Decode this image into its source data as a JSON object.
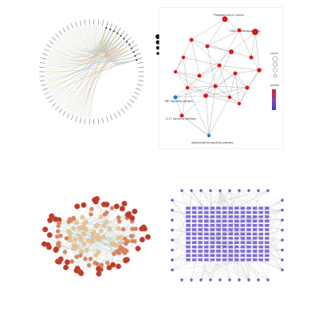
{
  "figure": {
    "panel_a": {
      "legend_sizes": [
        "",
        "",
        "",
        ""
      ],
      "node_labels": [
        "",
        "",
        "",
        "",
        "",
        "",
        "",
        "",
        "",
        "",
        "",
        "",
        "",
        "",
        "",
        ""
      ],
      "colors": {
        "edges": [
          "#f4a582",
          "#92c5de",
          "#b8e186",
          "#fdb863",
          "#c2a5cf",
          "#80cdc1",
          "#f1b6da",
          "#a6dba0"
        ]
      }
    },
    "panel_b": {
      "pathway_labels": {
        "top": "Proteoglycans in cancer",
        "right_top": "FOXO signaling pathway",
        "tnf": "TNF signaling pathway",
        "il17": "IL-17 signaling pathway",
        "bottom": "Adipocytokine signaling pathway"
      },
      "legend_count_title": "count",
      "legend_pvalue_title": "pvalue",
      "colors": {
        "node_high": "#d7191c",
        "node_low": "#2c7bb6",
        "gradient_top": "#e41a1c",
        "gradient_mid": "#8e44ad",
        "gradient_bottom": "#3b3bdc"
      }
    },
    "panel_c": {
      "colors": {
        "node_center": "#e8b48a",
        "node_outer": "#c0392b",
        "edge": "#9aa"
      }
    },
    "panel_d": {
      "colors": {
        "node": "#6a5acd",
        "edge": "#888888",
        "target": "#7b68ee"
      }
    }
  }
}
